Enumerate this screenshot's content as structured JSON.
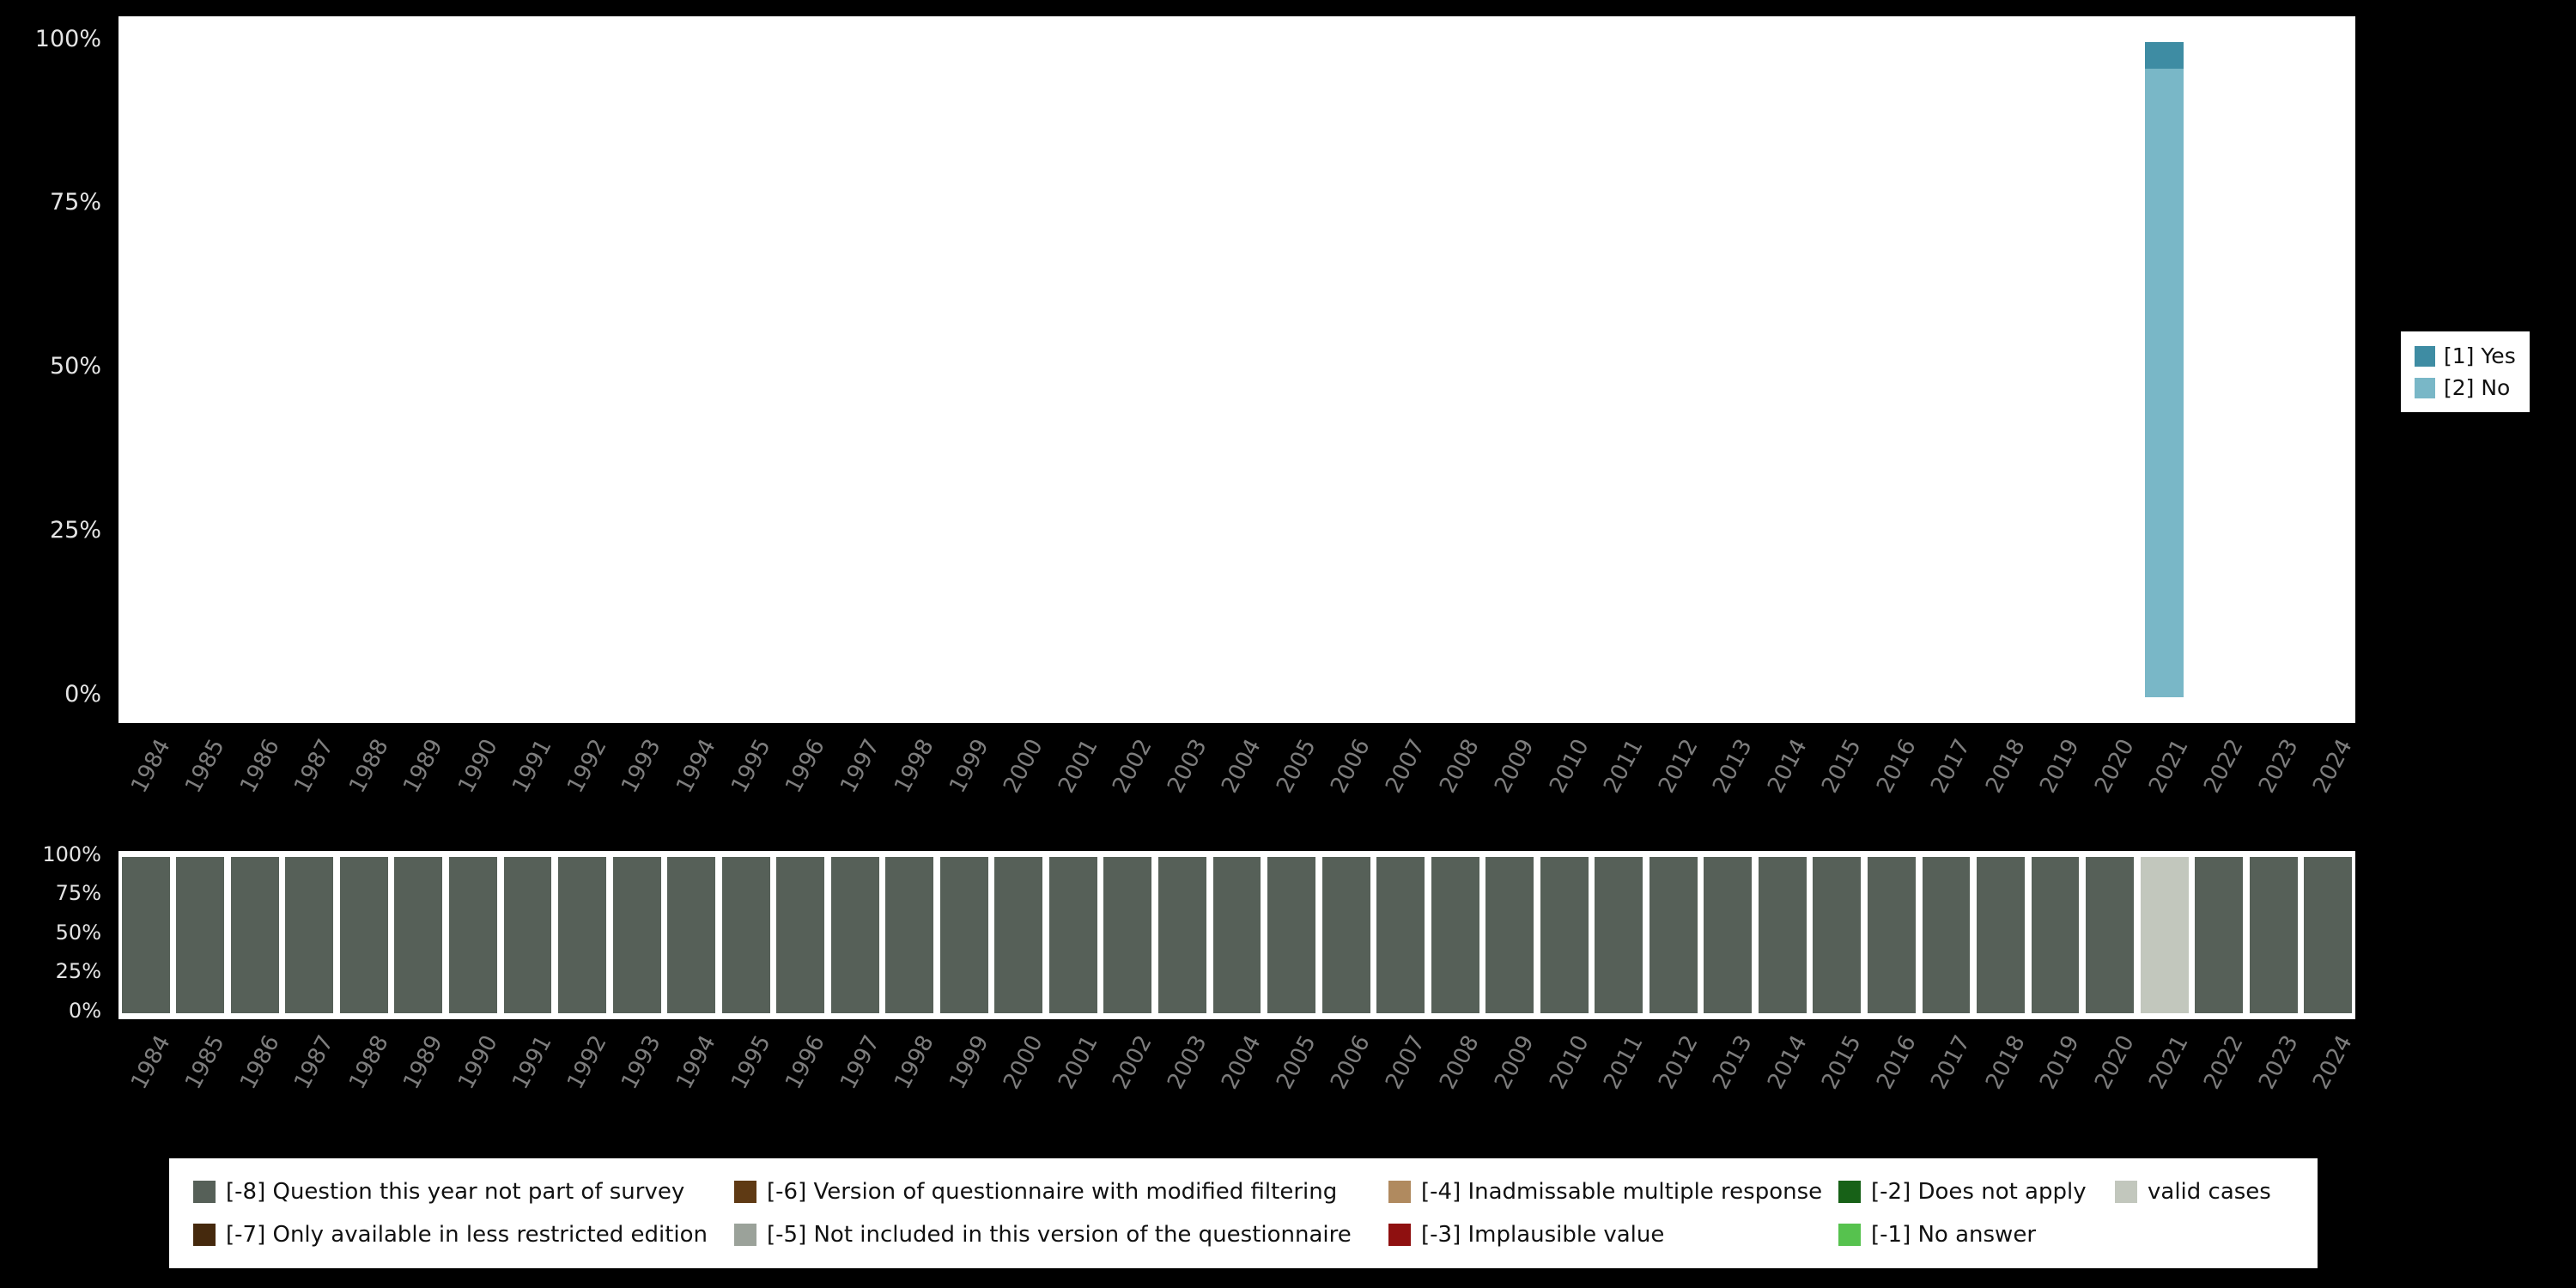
{
  "canvas": {
    "background": "#000000"
  },
  "chart_data": [
    {
      "id": "value-distribution",
      "type": "bar",
      "stacked": true,
      "title": "",
      "xlabel": "",
      "ylabel": "",
      "ylim": [
        0,
        100
      ],
      "y_ticks": [
        "100%",
        "75%",
        "50%",
        "25%",
        "0%"
      ],
      "legend_position": "right",
      "categories": [
        1984,
        1985,
        1986,
        1987,
        1988,
        1989,
        1990,
        1991,
        1992,
        1993,
        1994,
        1995,
        1996,
        1997,
        1998,
        1999,
        2000,
        2001,
        2002,
        2003,
        2004,
        2005,
        2006,
        2007,
        2008,
        2009,
        2010,
        2011,
        2012,
        2013,
        2014,
        2015,
        2016,
        2017,
        2018,
        2019,
        2020,
        2021,
        2022,
        2023,
        2024
      ],
      "series": [
        {
          "name": "[1] Yes",
          "color": "#3e8ca3",
          "values": [
            0,
            0,
            0,
            0,
            0,
            0,
            0,
            0,
            0,
            0,
            0,
            0,
            0,
            0,
            0,
            0,
            0,
            0,
            0,
            0,
            0,
            0,
            0,
            0,
            0,
            0,
            0,
            0,
            0,
            0,
            0,
            0,
            0,
            0,
            0,
            0,
            0,
            4,
            0,
            0,
            0
          ]
        },
        {
          "name": "[2] No",
          "color": "#79b7c7",
          "values": [
            0,
            0,
            0,
            0,
            0,
            0,
            0,
            0,
            0,
            0,
            0,
            0,
            0,
            0,
            0,
            0,
            0,
            0,
            0,
            0,
            0,
            0,
            0,
            0,
            0,
            0,
            0,
            0,
            0,
            0,
            0,
            0,
            0,
            0,
            0,
            0,
            0,
            96,
            0,
            0,
            0
          ]
        }
      ]
    },
    {
      "id": "missing-values-overview",
      "type": "bar",
      "stacked": true,
      "title": "",
      "xlabel": "",
      "ylabel": "",
      "ylim": [
        0,
        100
      ],
      "y_ticks": [
        "100%",
        "75%",
        "50%",
        "25%",
        "0%"
      ],
      "legend_position": "bottom",
      "categories": [
        1984,
        1985,
        1986,
        1987,
        1988,
        1989,
        1990,
        1991,
        1992,
        1993,
        1994,
        1995,
        1996,
        1997,
        1998,
        1999,
        2000,
        2001,
        2002,
        2003,
        2004,
        2005,
        2006,
        2007,
        2008,
        2009,
        2010,
        2011,
        2012,
        2013,
        2014,
        2015,
        2016,
        2017,
        2018,
        2019,
        2020,
        2021,
        2022,
        2023,
        2024
      ],
      "series": [
        {
          "name": "[-8] Question this year not part of survey",
          "color": "#566058",
          "values": [
            100,
            100,
            100,
            100,
            100,
            100,
            100,
            100,
            100,
            100,
            100,
            100,
            100,
            100,
            100,
            100,
            100,
            100,
            100,
            100,
            100,
            100,
            100,
            100,
            100,
            100,
            100,
            100,
            100,
            100,
            100,
            100,
            100,
            100,
            100,
            100,
            100,
            0,
            100,
            100,
            100
          ]
        },
        {
          "name": "valid cases",
          "color": "#c2c7bd",
          "values": [
            0,
            0,
            0,
            0,
            0,
            0,
            0,
            0,
            0,
            0,
            0,
            0,
            0,
            0,
            0,
            0,
            0,
            0,
            0,
            0,
            0,
            0,
            0,
            0,
            0,
            0,
            0,
            0,
            0,
            0,
            0,
            0,
            0,
            0,
            0,
            0,
            0,
            100,
            0,
            0,
            0
          ]
        }
      ]
    }
  ],
  "legend_right": {
    "items": [
      {
        "label": "[1] Yes",
        "color": "#3e8ca3"
      },
      {
        "label": "[2] No",
        "color": "#79b7c7"
      }
    ]
  },
  "legend_bottom": {
    "rows": [
      [
        {
          "label": "[-8] Question this year not part of survey",
          "color": "#566058"
        },
        {
          "label": "[-6] Version of questionnaire with modified filtering",
          "color": "#5f3a14"
        },
        {
          "label": "[-4] Inadmissable multiple response",
          "color": "#b08a5f"
        },
        {
          "label": "[-2] Does not apply",
          "color": "#176117"
        },
        {
          "label": "valid cases",
          "color": "#c2c7bd"
        }
      ],
      [
        {
          "label": "[-7] Only available in less restricted edition",
          "color": "#45290d"
        },
        {
          "label": "[-5] Not included in this version of the questionnaire",
          "color": "#9ba29a"
        },
        {
          "label": "[-3] Implausible value",
          "color": "#8f1010"
        },
        {
          "label": "[-1] No answer",
          "color": "#56c24e"
        }
      ]
    ]
  }
}
